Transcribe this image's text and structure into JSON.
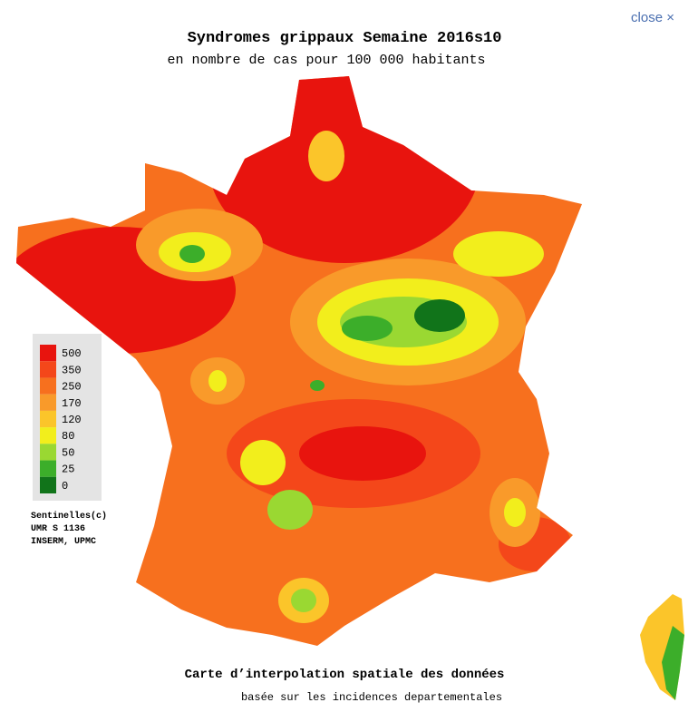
{
  "close": "close ×",
  "header": {
    "title": "Syndromes grippaux Semaine 2016s10",
    "subtitle": "en nombre de cas pour 100 000 habitants"
  },
  "legend": {
    "items": [
      {
        "value": 500,
        "color": "#e8140e"
      },
      {
        "value": 350,
        "color": "#f4471a"
      },
      {
        "value": 250,
        "color": "#f7701e"
      },
      {
        "value": 170,
        "color": "#f99a2a"
      },
      {
        "value": 120,
        "color": "#fbc52a"
      },
      {
        "value": 80,
        "color": "#f2ee1c"
      },
      {
        "value": 50,
        "color": "#9ad832"
      },
      {
        "value": 25,
        "color": "#3cae2a"
      },
      {
        "value": 0,
        "color": "#11741a"
      }
    ]
  },
  "credits": [
    "Sentinelles(c)",
    "UMR S 1136",
    "INSERM, UPMC"
  ],
  "footer": {
    "title": "Carte d’interpolation spatiale des données",
    "subtitle": "basée sur les incidences departementales"
  }
}
